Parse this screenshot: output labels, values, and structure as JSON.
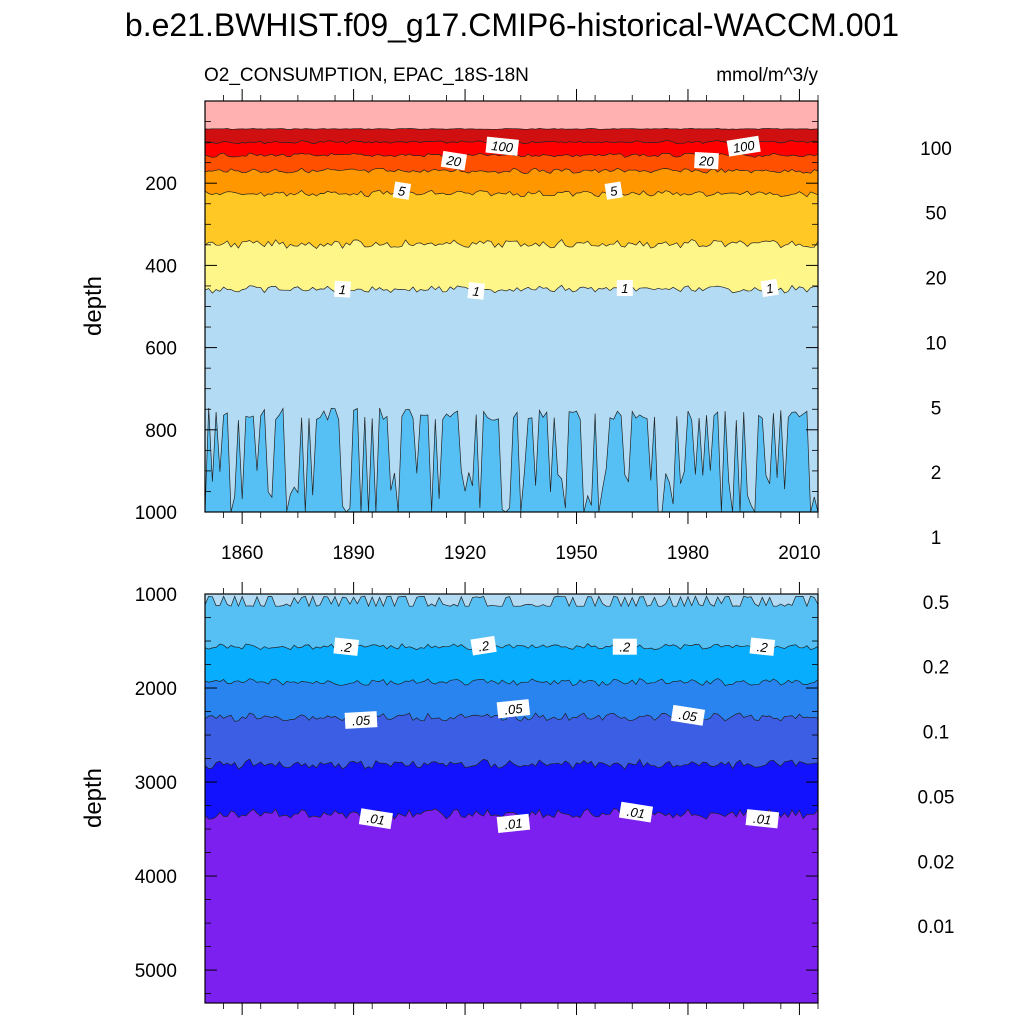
{
  "title": "b.e21.BWHIST.f09_g17.CMIP6-historical-WACCM.001",
  "chart_data": [
    {
      "type": "heatmap",
      "name": "upper-panel",
      "left_title": "O2_CONSUMPTION, EPAC_18S-18N",
      "right_title": "mmol/m^3/y",
      "ylabel": "depth",
      "xlim": [
        1850,
        2015
      ],
      "ylim": [
        1000,
        0
      ],
      "xticks": [
        1860,
        1890,
        1920,
        1950,
        1980,
        2010
      ],
      "xtick_labels": [
        "1860",
        "1890",
        "1920",
        "1950",
        "1980",
        "2010"
      ],
      "yticks": [
        200,
        400,
        600,
        800,
        1000
      ],
      "ytick_labels": [
        "200",
        "400",
        "600",
        "800",
        "1000"
      ],
      "depth_range_shown": [
        50,
        1000
      ],
      "boundaries": [
        {
          "level": "100",
          "mean_depth": 68,
          "jitter": 1
        },
        {
          "level": "50",
          "mean_depth": 100,
          "jitter": 3
        },
        {
          "level": "20",
          "mean_depth": 132,
          "jitter": 4
        },
        {
          "level": "10",
          "mean_depth": 170,
          "jitter": 5
        },
        {
          "level": "5",
          "mean_depth": 225,
          "jitter": 6
        },
        {
          "level": "2",
          "mean_depth": 348,
          "jitter": 8
        },
        {
          "level": "1",
          "mean_depth": 458,
          "jitter": 7
        },
        {
          "level": "0.5",
          "mean_depth": 760,
          "jitter": 110,
          "spiky": true
        }
      ],
      "contour_labels": [
        {
          "text": "100",
          "year": 1930,
          "depth": 110
        },
        {
          "text": "100",
          "year": 1995,
          "depth": 110
        },
        {
          "text": "20",
          "year": 1917,
          "depth": 145
        },
        {
          "text": "20",
          "year": 1985,
          "depth": 145
        },
        {
          "text": "5",
          "year": 1903,
          "depth": 218
        },
        {
          "text": "5",
          "year": 1960,
          "depth": 218
        },
        {
          "text": "1",
          "year": 1887,
          "depth": 458
        },
        {
          "text": "1",
          "year": 1923,
          "depth": 462
        },
        {
          "text": "1",
          "year": 1963,
          "depth": 455
        },
        {
          "text": "1",
          "year": 2002,
          "depth": 455
        }
      ]
    },
    {
      "type": "heatmap",
      "name": "lower-panel",
      "ylabel": "depth",
      "xlim": [
        1850,
        2015
      ],
      "ylim": [
        5350,
        1000
      ],
      "yticks": [
        1000,
        2000,
        3000,
        4000,
        5000
      ],
      "ytick_labels": [
        "1000",
        "2000",
        "3000",
        "4000",
        "5000"
      ],
      "boundaries": [
        {
          "level": "0.5",
          "mean_depth": 1030,
          "jitter": 60,
          "spiky": true
        },
        {
          "level": "0.2",
          "mean_depth": 1560,
          "jitter": 25
        },
        {
          "level": "0.1",
          "mean_depth": 1940,
          "jitter": 30
        },
        {
          "level": "0.05",
          "mean_depth": 2310,
          "jitter": 35
        },
        {
          "level": "0.02",
          "mean_depth": 2810,
          "jitter": 40
        },
        {
          "level": "0.01",
          "mean_depth": 3340,
          "jitter": 45
        }
      ],
      "contour_labels": [
        {
          "text": ".2",
          "year": 1888,
          "depth": 1560
        },
        {
          "text": ".2",
          "year": 1925,
          "depth": 1550
        },
        {
          "text": ".2",
          "year": 1963,
          "depth": 1560
        },
        {
          "text": ".2",
          "year": 2000,
          "depth": 1560
        },
        {
          "text": ".05",
          "year": 1892,
          "depth": 2340
        },
        {
          "text": ".05",
          "year": 1933,
          "depth": 2220
        },
        {
          "text": ".05",
          "year": 1980,
          "depth": 2290
        },
        {
          "text": ".01",
          "year": 1896,
          "depth": 3390
        },
        {
          "text": ".01",
          "year": 1933,
          "depth": 3440
        },
        {
          "text": ".01",
          "year": 1966,
          "depth": 3320
        },
        {
          "text": ".01",
          "year": 2000,
          "depth": 3390
        }
      ]
    }
  ],
  "colorbar": {
    "label_values": [
      "100",
      "50",
      "20",
      "10",
      "5",
      "2",
      "1",
      "0.5",
      "0.2",
      "0.1",
      "0.05",
      "0.02",
      "0.01"
    ],
    "colors": [
      "#ffb0b0",
      "#d01010",
      "#ff0000",
      "#ff5000",
      "#ff9800",
      "#ffc825",
      "#fff68a",
      "#b3dbf3",
      "#56c0f4",
      "#08adfe",
      "#2a84ef",
      "#3b5ee4",
      "#1212ff",
      "#7c20ef"
    ]
  }
}
